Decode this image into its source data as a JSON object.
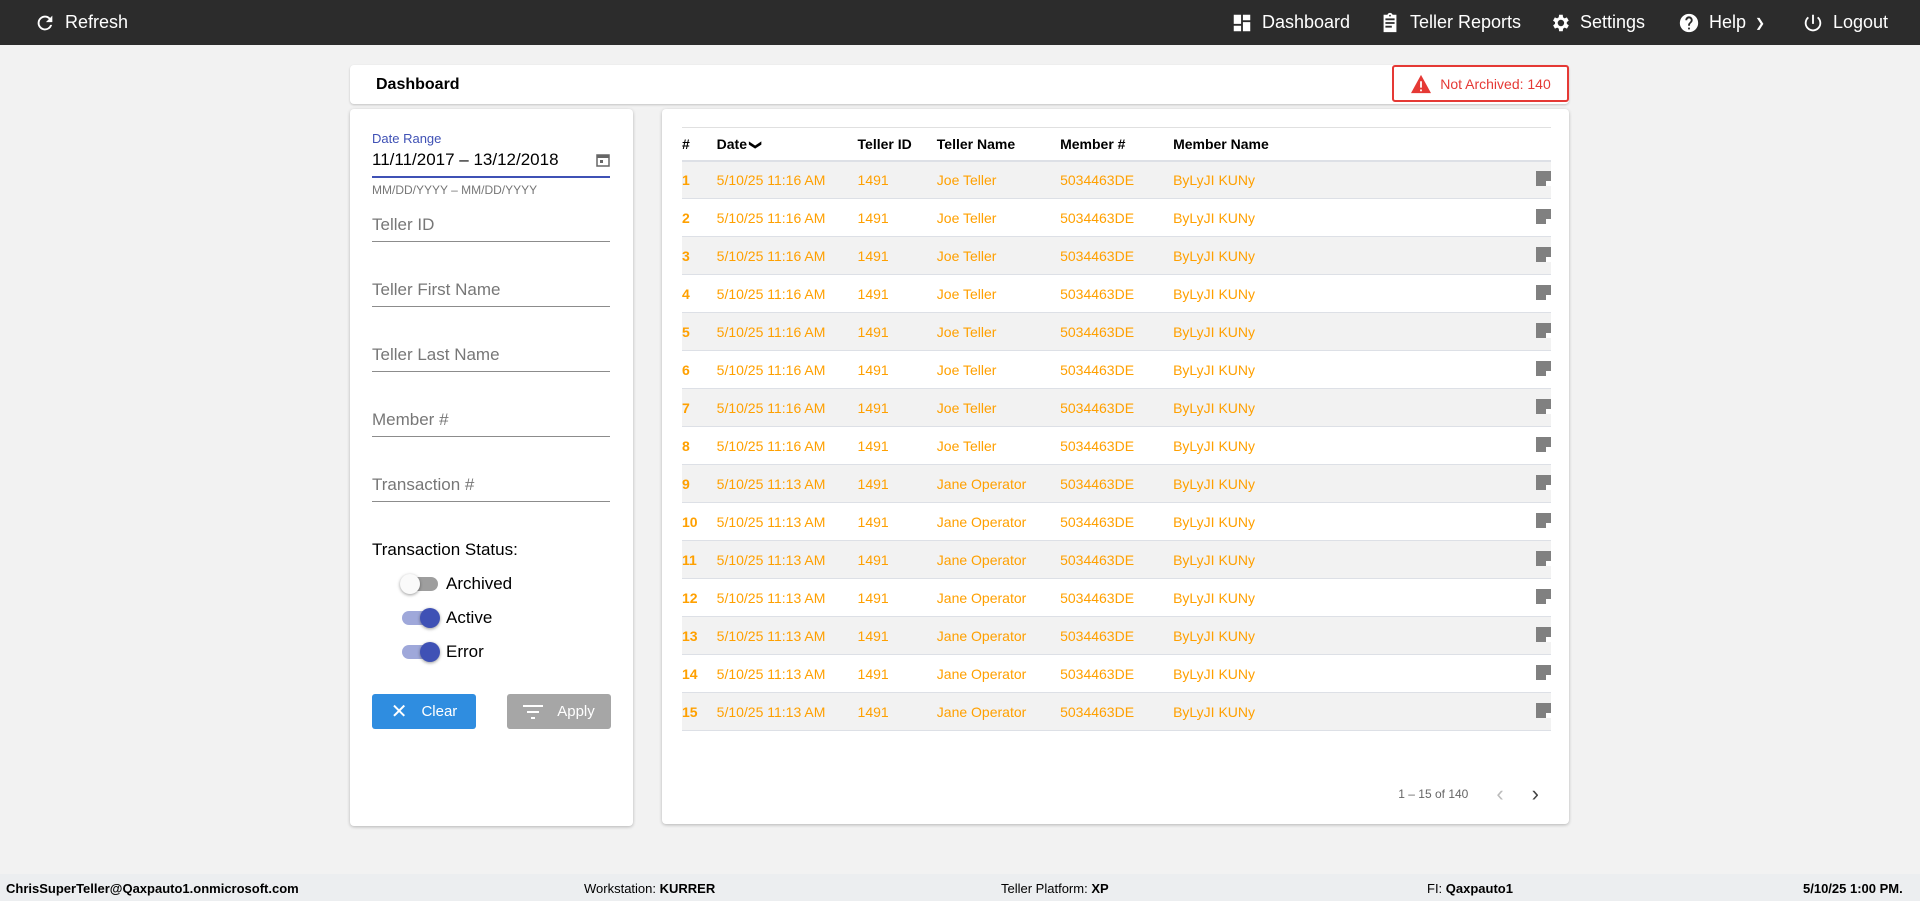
{
  "topbar": {
    "refresh": "Refresh",
    "dashboard": "Dashboard",
    "teller_reports": "Teller Reports",
    "settings": "Settings",
    "help": "Help",
    "logout": "Logout"
  },
  "header": {
    "title": "Dashboard",
    "badge": "Not Archived: 140"
  },
  "filters": {
    "date_range_label": "Date Range",
    "date_range_value": "11/11/2017 – 13/12/2018",
    "date_range_hint": "MM/DD/YYYY – MM/DD/YYYY",
    "teller_id": "Teller ID",
    "teller_first_name": "Teller First Name",
    "teller_last_name": "Teller Last Name",
    "member_number": "Member #",
    "transaction_number": "Transaction #",
    "status_label": "Transaction Status:",
    "toggles": [
      {
        "label": "Archived",
        "on": false
      },
      {
        "label": "Active",
        "on": true
      },
      {
        "label": "Error",
        "on": true
      }
    ],
    "clear": "Clear",
    "apply": "Apply"
  },
  "table": {
    "columns": [
      "#",
      "Date",
      "Teller ID",
      "Teller Name",
      "Member #",
      "Member Name"
    ],
    "rows": [
      [
        "1",
        "5/10/25 11:16 AM",
        "1491",
        "Joe Teller",
        "5034463DE",
        "ByLyJI KUNy"
      ],
      [
        "2",
        "5/10/25 11:16 AM",
        "1491",
        "Joe Teller",
        "5034463DE",
        "ByLyJI KUNy"
      ],
      [
        "3",
        "5/10/25 11:16 AM",
        "1491",
        "Joe Teller",
        "5034463DE",
        "ByLyJI KUNy"
      ],
      [
        "4",
        "5/10/25 11:16 AM",
        "1491",
        "Joe Teller",
        "5034463DE",
        "ByLyJI KUNy"
      ],
      [
        "5",
        "5/10/25 11:16 AM",
        "1491",
        "Joe Teller",
        "5034463DE",
        "ByLyJI KUNy"
      ],
      [
        "6",
        "5/10/25 11:16 AM",
        "1491",
        "Joe Teller",
        "5034463DE",
        "ByLyJI KUNy"
      ],
      [
        "7",
        "5/10/25 11:16 AM",
        "1491",
        "Joe Teller",
        "5034463DE",
        "ByLyJI KUNy"
      ],
      [
        "8",
        "5/10/25 11:16 AM",
        "1491",
        "Joe Teller",
        "5034463DE",
        "ByLyJI KUNy"
      ],
      [
        "9",
        "5/10/25 11:13 AM",
        "1491",
        "Jane Operator",
        "5034463DE",
        "ByLyJI KUNy"
      ],
      [
        "10",
        "5/10/25 11:13 AM",
        "1491",
        "Jane Operator",
        "5034463DE",
        "ByLyJI KUNy"
      ],
      [
        "11",
        "5/10/25 11:13 AM",
        "1491",
        "Jane Operator",
        "5034463DE",
        "ByLyJI KUNy"
      ],
      [
        "12",
        "5/10/25 11:13 AM",
        "1491",
        "Jane Operator",
        "5034463DE",
        "ByLyJI KUNy"
      ],
      [
        "13",
        "5/10/25 11:13 AM",
        "1491",
        "Jane Operator",
        "5034463DE",
        "ByLyJI KUNy"
      ],
      [
        "14",
        "5/10/25 11:13 AM",
        "1491",
        "Jane Operator",
        "5034463DE",
        "ByLyJI KUNy"
      ],
      [
        "15",
        "5/10/25 11:13 AM",
        "1491",
        "Jane Operator",
        "5034463DE",
        "ByLyJI KUNy"
      ]
    ],
    "pagination": "1 – 15 of 140"
  },
  "footer": {
    "user": "ChrisSuperTeller@Qaxpauto1.onmicrosoft.com",
    "workstation_label": "Workstation: ",
    "workstation": "KURRER",
    "platform_label": "Teller Platform: ",
    "platform": "XP",
    "fi_label": "FI: ",
    "fi": "Qaxpauto1",
    "datetime": "5/10/25 1:00 PM."
  },
  "colors": {
    "accent": "#3f51b5",
    "row_text": "#ffa000",
    "alert": "#e53935",
    "clear_button": "#2f8de0",
    "apply_button": "#a6a6a6"
  }
}
